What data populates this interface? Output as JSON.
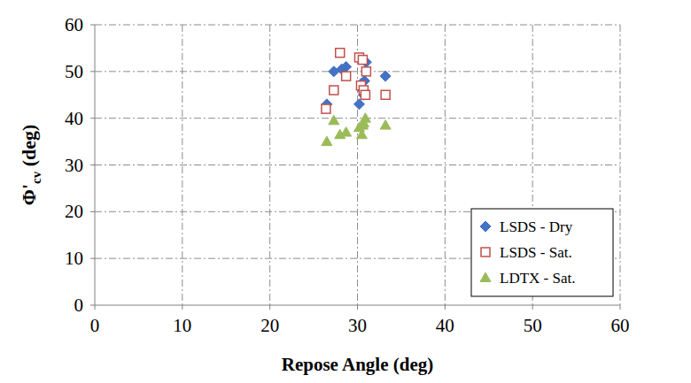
{
  "chart_data": {
    "type": "scatter",
    "x_label": "Repose Angle (deg)",
    "y_label": "Φ'cv (deg)",
    "xlim": [
      0,
      60
    ],
    "ylim": [
      0,
      60
    ],
    "xticks": [
      0,
      10,
      20,
      30,
      40,
      50,
      60
    ],
    "yticks": [
      0,
      10,
      20,
      30,
      40,
      50,
      60
    ],
    "grid": true,
    "legend": "lower right",
    "series": [
      {
        "name": "LSDS - Dry",
        "color": "#4472c4",
        "marker": "diamond",
        "x": [
          26.5,
          27.3,
          28.2,
          28.7,
          30.2,
          30.5,
          30.7,
          30.8,
          31.0,
          33.2,
          30.6
        ],
        "values": [
          43,
          50,
          50.5,
          51,
          43,
          47.5,
          45,
          48,
          52,
          49,
          46
        ]
      },
      {
        "name": "LSDS - Sat.",
        "color": "#c0504d",
        "marker": "open-square",
        "x": [
          26.4,
          27.3,
          28.0,
          28.7,
          30.2,
          30.6,
          30.4,
          30.7,
          31.0,
          30.9,
          33.2
        ],
        "values": [
          42,
          46,
          54,
          49,
          53,
          52.5,
          47,
          46,
          50,
          45,
          45
        ]
      },
      {
        "name": "LDTX - Sat.",
        "color": "#9bbb59",
        "marker": "triangle",
        "x": [
          26.5,
          27.3,
          28.0,
          28.7,
          30.2,
          30.5,
          30.7,
          30.9,
          30.6,
          33.2
        ],
        "values": [
          35,
          39.5,
          36.5,
          37,
          38,
          36.5,
          39,
          40,
          38.5,
          38.5
        ]
      }
    ]
  }
}
